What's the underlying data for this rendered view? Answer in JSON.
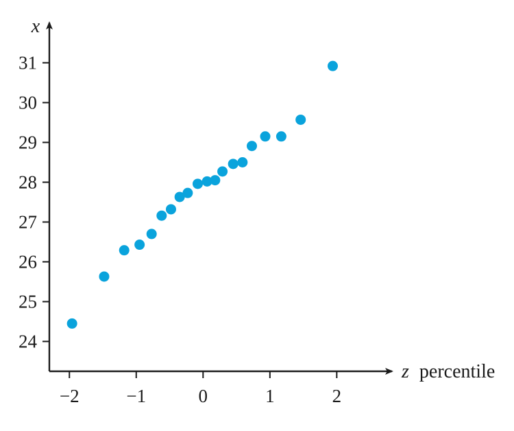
{
  "chart_data": {
    "type": "scatter",
    "title": "",
    "xlabel_var": "z",
    "xlabel_rest": "percentile",
    "ylabel": "x",
    "xlim": [
      -2.3,
      2.55
    ],
    "ylim": [
      23.25,
      31.75
    ],
    "x_ticks": [
      -2,
      -1,
      0,
      1,
      2
    ],
    "x_tick_labels": [
      "−2",
      "−1",
      "0",
      "1",
      "2"
    ],
    "y_ticks": [
      24,
      25,
      26,
      27,
      28,
      29,
      30,
      31
    ],
    "y_tick_labels": [
      "24",
      "25",
      "26",
      "27",
      "28",
      "29",
      "30",
      "31"
    ],
    "grid": false,
    "point_color": "#0aa3dc",
    "axis_color": "#1a1a1a",
    "series": [
      {
        "x": [
          -1.96,
          -1.48,
          -1.18,
          -0.95,
          -0.77,
          -0.62,
          -0.48,
          -0.35,
          -0.23,
          -0.08,
          0.06,
          0.18,
          0.29,
          0.45,
          0.59,
          0.73,
          0.93,
          1.17,
          1.46,
          1.94
        ],
        "y": [
          24.45,
          25.63,
          26.29,
          26.43,
          26.7,
          27.16,
          27.32,
          27.63,
          27.73,
          27.96,
          28.02,
          28.05,
          28.27,
          28.46,
          28.5,
          28.91,
          29.15,
          29.15,
          29.57,
          30.92
        ]
      }
    ]
  }
}
